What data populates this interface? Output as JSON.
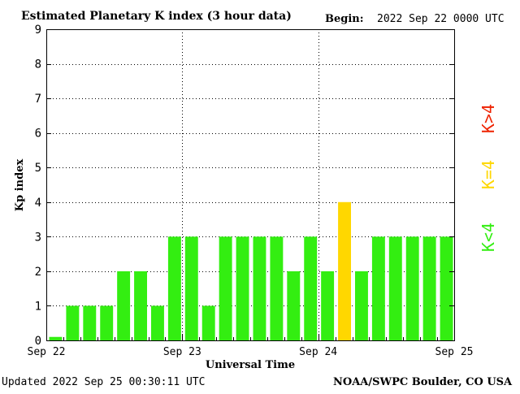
{
  "chart_data": {
    "type": "bar",
    "title": "Estimated Planetary K index (3 hour data)",
    "begin_label": "Begin:",
    "begin_value": "2022 Sep 22 0000 UTC",
    "ylabel": "Kp index",
    "xlabel": "Universal Time",
    "ylim": [
      0,
      9
    ],
    "yticks": [
      "0",
      "1",
      "2",
      "3",
      "4",
      "5",
      "6",
      "7",
      "8",
      "9"
    ],
    "xticks": [
      "Sep 22",
      "Sep 23",
      "Sep 24",
      "Sep 25"
    ],
    "grid": true,
    "values": [
      0.1,
      1,
      1,
      1,
      2,
      2,
      1,
      3,
      3,
      1,
      3,
      3,
      3,
      3,
      2,
      3,
      2,
      4,
      2,
      3,
      3,
      3,
      3,
      3
    ],
    "colors": {
      "below_4": "#33ee11",
      "equal_4": "#ffd700",
      "above_4": "#ee2200"
    },
    "legend": [
      {
        "label": "K>4",
        "color": "#ee2200"
      },
      {
        "label": "K=4",
        "color": "#ffd700"
      },
      {
        "label": "K<4",
        "color": "#33ee11"
      }
    ],
    "legend_placement": "right"
  },
  "footer": {
    "updated": "Updated 2022 Sep 25 00:30:11 UTC",
    "source": "NOAA/SWPC Boulder, CO USA"
  }
}
